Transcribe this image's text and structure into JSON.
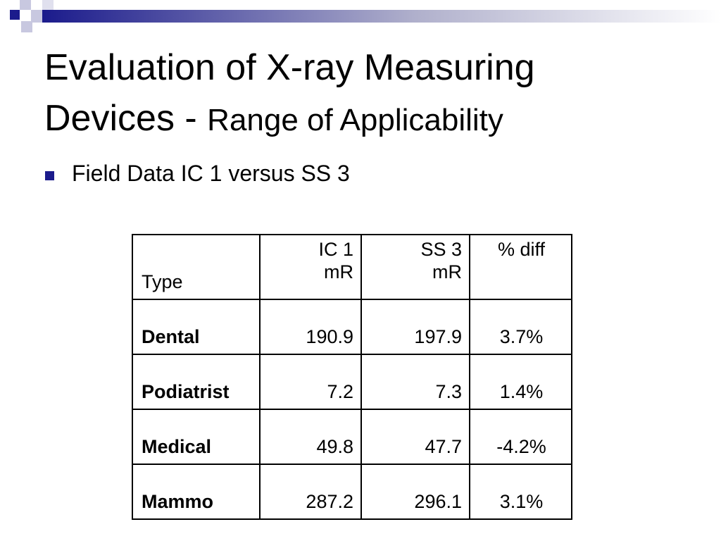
{
  "title": {
    "main": "Evaluation of X-ray Measuring Devices -",
    "sub": "Range of Applicability"
  },
  "bullets": [
    "Field Data  IC 1 versus SS 3"
  ],
  "table": {
    "header": [
      [
        "Type"
      ],
      [
        "IC 1",
        "mR"
      ],
      [
        "SS 3",
        "mR"
      ],
      [
        "% diff"
      ]
    ],
    "rows": [
      [
        "Dental",
        "190.9",
        "197.9",
        "3.7%"
      ],
      [
        "Podiatrist",
        "7.2",
        "7.3",
        "1.4%"
      ],
      [
        "Medical",
        "49.8",
        "47.7",
        "-4.2%"
      ],
      [
        "Mammo",
        "287.2",
        "296.1",
        "3.1%"
      ]
    ]
  }
}
